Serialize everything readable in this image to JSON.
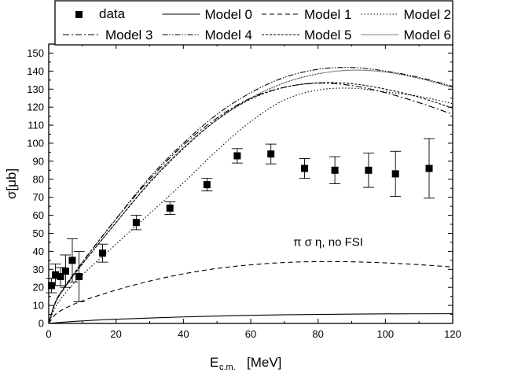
{
  "chart_data": {
    "type": "scatter",
    "xlabel_main": "E",
    "xlabel_sub": "c.m.",
    "xlabel_unit": "[MeV]",
    "ylabel": "σ[μb]",
    "xlim": [
      0,
      120
    ],
    "ylim": [
      0,
      155
    ],
    "x_ticks": [
      0,
      20,
      40,
      60,
      80,
      100,
      120
    ],
    "y_ticks": [
      0,
      10,
      20,
      30,
      40,
      50,
      60,
      70,
      80,
      90,
      100,
      110,
      120,
      130,
      140,
      150
    ],
    "annotation": "π σ η, no FSI",
    "legend": {
      "placement": "top",
      "entries": [
        {
          "label": "data",
          "marker": "square"
        },
        {
          "label": "Model 0",
          "dash": ""
        },
        {
          "label": "Model 1",
          "dash": "6 4"
        },
        {
          "label": "Model 2",
          "dash": "1.5 2.5"
        },
        {
          "label": "Model 3",
          "dash": "8 3 2 3"
        },
        {
          "label": "Model 4",
          "dash": "7 2 1.5 2 1.5 2"
        },
        {
          "label": "Model 5",
          "dash": "3 2"
        },
        {
          "label": "Model 6",
          "dash": "1 1"
        }
      ]
    },
    "data_points": [
      {
        "x": 0.8,
        "y": 21,
        "err": 4
      },
      {
        "x": 2.0,
        "y": 27,
        "err": 6
      },
      {
        "x": 3.5,
        "y": 26,
        "err": 5
      },
      {
        "x": 5.0,
        "y": 29,
        "err": 9
      },
      {
        "x": 7.0,
        "y": 35,
        "err": 12
      },
      {
        "x": 9.0,
        "y": 26,
        "err": 14
      },
      {
        "x": 16,
        "y": 39,
        "err": 5
      },
      {
        "x": 26,
        "y": 56,
        "err": 4
      },
      {
        "x": 36,
        "y": 64,
        "err": 3.5
      },
      {
        "x": 47,
        "y": 77,
        "err": 3.5
      },
      {
        "x": 56,
        "y": 93,
        "err": 4
      },
      {
        "x": 66,
        "y": 94,
        "err": 5.5
      },
      {
        "x": 76,
        "y": 86,
        "err": 5.5
      },
      {
        "x": 85,
        "y": 85,
        "err": 7.5
      },
      {
        "x": 95,
        "y": 85,
        "err": 9.5
      },
      {
        "x": 103,
        "y": 83,
        "err": 12.5
      },
      {
        "x": 113,
        "y": 86,
        "err": 16.5
      }
    ],
    "series": [
      {
        "name": "Model 0",
        "x": [
          0,
          5,
          10,
          20,
          40,
          60,
          80,
          100,
          120
        ],
        "y": [
          0,
          0.8,
          1.4,
          2.3,
          3.6,
          4.5,
          5.0,
          5.3,
          5.4
        ]
      },
      {
        "name": "Model 1",
        "x": [
          0,
          2,
          5,
          10,
          20,
          30,
          40,
          50,
          60,
          70,
          80,
          90,
          100,
          110,
          120
        ],
        "y": [
          0,
          5,
          8.5,
          12.5,
          18.5,
          23.5,
          27.5,
          30.5,
          32.5,
          33.8,
          34.3,
          34.2,
          33.6,
          32.6,
          31.3
        ]
      },
      {
        "name": "Model 2",
        "x": [
          0,
          2,
          5,
          10,
          20,
          30,
          40,
          50,
          60,
          70,
          80,
          90,
          100,
          110,
          120
        ],
        "y": [
          0,
          9,
          17,
          27,
          44,
          61,
          78,
          96,
          112,
          124,
          129.5,
          130.5,
          128.5,
          126,
          122
        ]
      },
      {
        "name": "Model 3",
        "x": [
          0,
          2,
          5,
          10,
          20,
          30,
          40,
          50,
          60,
          70,
          80,
          90,
          100,
          110,
          120
        ],
        "y": [
          0,
          12,
          21,
          34,
          58,
          80,
          99,
          114,
          125,
          131,
          133.3,
          132,
          128,
          122.5,
          116
        ]
      },
      {
        "name": "Model 4",
        "x": [
          0,
          2,
          5,
          10,
          20,
          30,
          40,
          50,
          60,
          70,
          80,
          90,
          100,
          110,
          120
        ],
        "y": [
          0,
          12,
          21,
          34,
          58,
          81,
          100,
          116,
          128,
          136.5,
          141,
          142,
          140,
          136.5,
          131.5
        ]
      },
      {
        "name": "Model 5",
        "x": [
          0,
          2,
          5,
          10,
          20,
          30,
          40,
          50,
          60,
          70,
          80,
          90,
          100,
          110,
          120
        ],
        "y": [
          0,
          11.5,
          20.5,
          33,
          56,
          78,
          97,
          113,
          124.5,
          131,
          133.5,
          133,
          130,
          125.5,
          119.5
        ]
      },
      {
        "name": "Model 6",
        "x": [
          0,
          2,
          5,
          10,
          20,
          30,
          40,
          50,
          60,
          70,
          80,
          90,
          100,
          110,
          120
        ],
        "y": [
          0,
          11.5,
          20.5,
          33,
          56,
          78.5,
          97.5,
          113,
          125,
          133.5,
          138.5,
          140.5,
          139.5,
          136,
          131
        ]
      }
    ]
  }
}
